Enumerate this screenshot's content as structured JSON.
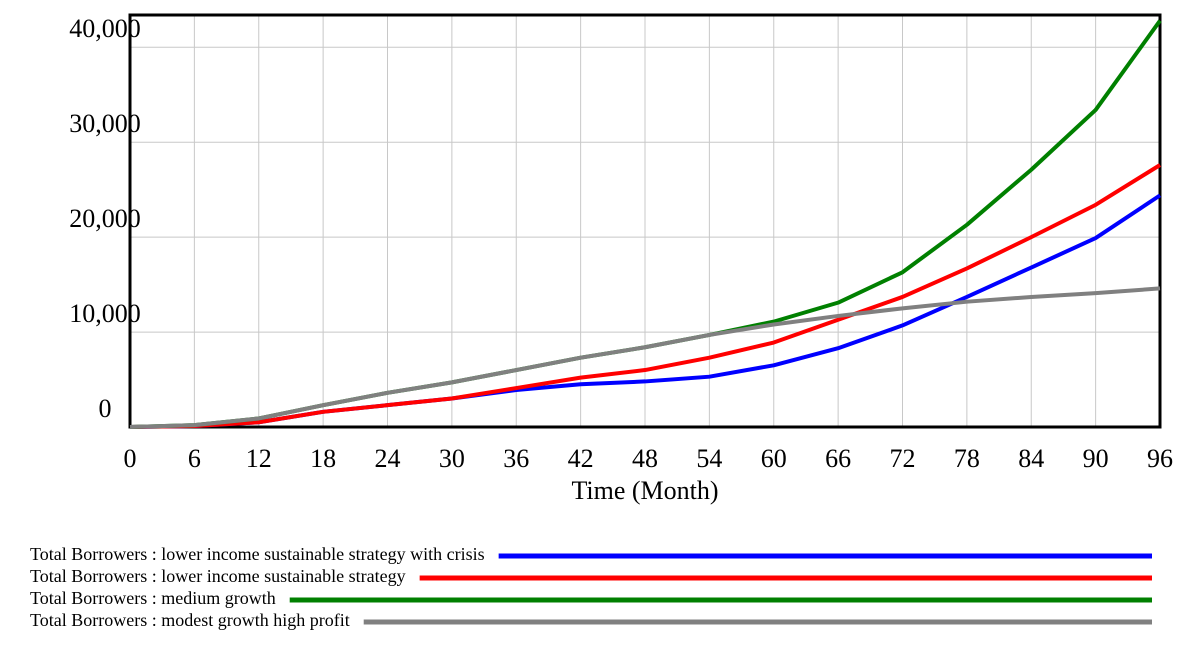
{
  "chart_data": {
    "type": "line",
    "xlabel": "Time (Month)",
    "x": [
      0,
      6,
      12,
      18,
      24,
      30,
      36,
      42,
      48,
      54,
      60,
      66,
      72,
      78,
      84,
      90,
      96
    ],
    "xlim": [
      0,
      96
    ],
    "xticks": [
      0,
      6,
      12,
      18,
      24,
      30,
      36,
      42,
      48,
      54,
      60,
      66,
      72,
      78,
      84,
      90,
      96
    ],
    "ylim": [
      0,
      43400
    ],
    "yticks": [
      0,
      {
        "value": 10000,
        "label": "10,000"
      },
      {
        "value": 20000,
        "label": "20,000"
      },
      {
        "value": 30000,
        "label": "30,000"
      },
      {
        "value": 40000,
        "label": "40,000"
      }
    ],
    "grid": true,
    "series": [
      {
        "name": "Total Borrowers : lower income sustainable strategy with crisis",
        "color": "#0000ff",
        "values": [
          0,
          100,
          500,
          1600,
          2300,
          3000,
          3900,
          4500,
          4800,
          5300,
          6500,
          8300,
          10700,
          13700,
          16800,
          19900,
          24400
        ]
      },
      {
        "name": "Total Borrowers : lower income sustainable strategy",
        "color": "#ff0000",
        "values": [
          0,
          100,
          500,
          1600,
          2300,
          3000,
          4100,
          5200,
          6000,
          7300,
          8900,
          11300,
          13700,
          16700,
          20000,
          23400,
          27600
        ]
      },
      {
        "name": "Total Borrowers : medium growth",
        "color": "#008000",
        "values": [
          0,
          200,
          900,
          2300,
          3600,
          4700,
          6000,
          7300,
          8400,
          9700,
          11100,
          13100,
          16300,
          21300,
          27100,
          33400,
          42800
        ]
      },
      {
        "name": "Total Borrowers : modest growth high profit",
        "color": "#808080",
        "values": [
          0,
          200,
          900,
          2300,
          3600,
          4700,
          6000,
          7300,
          8400,
          9700,
          10800,
          11700,
          12500,
          13200,
          13700,
          14100,
          14600
        ]
      }
    ]
  }
}
